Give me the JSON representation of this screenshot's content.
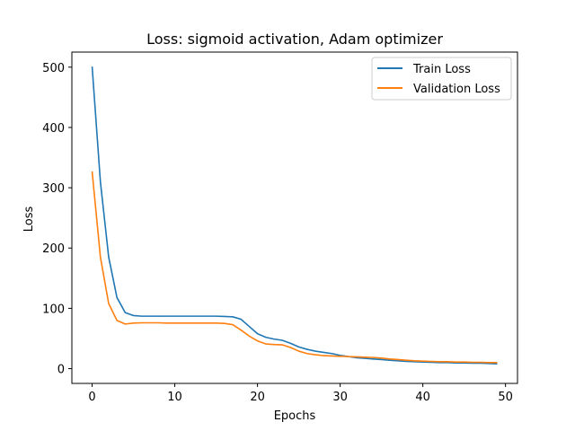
{
  "chart_data": {
    "type": "line",
    "title": "Loss: sigmoid activation, Adam optimizer",
    "xlabel": "Epochs",
    "ylabel": "Loss",
    "xlim": [
      -2.45,
      51.45
    ],
    "ylim": [
      -24.5,
      525.0
    ],
    "xticks": [
      0,
      10,
      20,
      30,
      40,
      50
    ],
    "yticks": [
      0,
      100,
      200,
      300,
      400,
      500
    ],
    "grid": false,
    "legend": "top-right",
    "x": [
      0,
      1,
      2,
      3,
      4,
      5,
      6,
      7,
      8,
      9,
      10,
      11,
      12,
      13,
      14,
      15,
      16,
      17,
      18,
      19,
      20,
      21,
      22,
      23,
      24,
      25,
      26,
      27,
      28,
      29,
      30,
      31,
      32,
      33,
      34,
      35,
      36,
      37,
      38,
      39,
      40,
      41,
      42,
      43,
      44,
      45,
      46,
      47,
      48,
      49
    ],
    "series": [
      {
        "name": "Train Loss",
        "color": "#1f77b4",
        "values": [
          501,
          310,
          185,
          118,
          93,
          88,
          87,
          87,
          87,
          87,
          87,
          87,
          87,
          87,
          87,
          87,
          86.5,
          86,
          82,
          70,
          58,
          52,
          49,
          47,
          42,
          36,
          32,
          29,
          27,
          25,
          22,
          20,
          18,
          17,
          16,
          15,
          14,
          13,
          12,
          11.5,
          11,
          10.5,
          10,
          10,
          9.5,
          9.5,
          9,
          9,
          8.5,
          8
        ]
      },
      {
        "name": "Validation Loss",
        "color": "#ff7f0e",
        "values": [
          327,
          185,
          108,
          80,
          74,
          75.5,
          76,
          76,
          76,
          75.5,
          75.5,
          75.5,
          75.5,
          75.5,
          75.5,
          75.5,
          75,
          73,
          64,
          54,
          46,
          41,
          40,
          39.5,
          35,
          29,
          25,
          23,
          21.5,
          21,
          20.5,
          20,
          19.5,
          19,
          18.5,
          17.5,
          16,
          15,
          14,
          13,
          12.5,
          12,
          11.5,
          11.5,
          11,
          11,
          10.5,
          10.5,
          10,
          10
        ]
      }
    ]
  }
}
